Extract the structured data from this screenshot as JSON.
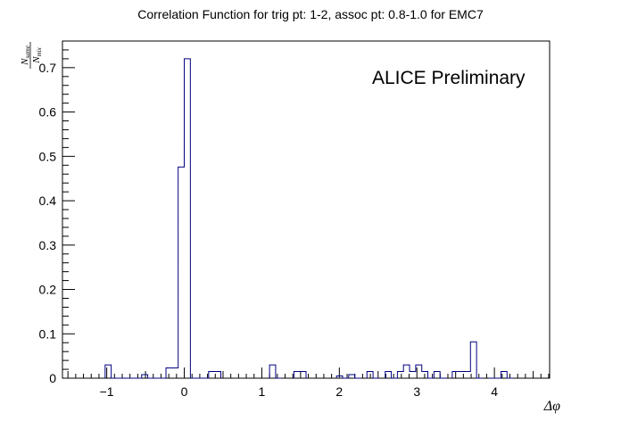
{
  "chart_data": {
    "type": "bar",
    "style": "step-histogram",
    "title": "Correlation Function for trig pt: 1-2, assoc pt: 0.8-1.0 for EMC7",
    "annotation": "ALICE Preliminary",
    "xlabel": "Δφ",
    "ylabel": {
      "numerator": "N",
      "numerator_sub": "same",
      "denominator": "N",
      "denominator_sub": "mix"
    },
    "xlim": [
      -1.571,
      4.712
    ],
    "ylim": [
      0,
      0.76
    ],
    "x_ticks": [
      -1,
      0,
      1,
      2,
      3,
      4
    ],
    "x_tick_labels": [
      "−1",
      "0",
      "1",
      "2",
      "3",
      "4"
    ],
    "y_ticks": [
      0,
      0.1,
      0.2,
      0.3,
      0.4,
      0.5,
      0.6,
      0.7
    ],
    "y_tick_labels": [
      "0",
      "0.1",
      "0.2",
      "0.3",
      "0.4",
      "0.5",
      "0.6",
      "0.7"
    ],
    "grid": false,
    "line_color": "#000080",
    "bin_width": 0.0785,
    "bins": [
      {
        "x": -1.021,
        "y": 0.03
      },
      {
        "x": -0.942,
        "y": 0.0
      },
      {
        "x": -0.864,
        "y": 0.0
      },
      {
        "x": -0.785,
        "y": 0.0
      },
      {
        "x": -0.707,
        "y": 0.0
      },
      {
        "x": -0.628,
        "y": 0.0
      },
      {
        "x": -0.55,
        "y": 0.008
      },
      {
        "x": -0.471,
        "y": 0.0
      },
      {
        "x": -0.393,
        "y": 0.0
      },
      {
        "x": -0.314,
        "y": 0.0
      },
      {
        "x": -0.236,
        "y": 0.023
      },
      {
        "x": -0.157,
        "y": 0.023
      },
      {
        "x": -0.079,
        "y": 0.476
      },
      {
        "x": 0.0,
        "y": 0.72
      },
      {
        "x": 0.079,
        "y": 0.0
      },
      {
        "x": 0.157,
        "y": 0.0
      },
      {
        "x": 0.236,
        "y": 0.0
      },
      {
        "x": 0.314,
        "y": 0.015
      },
      {
        "x": 0.393,
        "y": 0.015
      },
      {
        "x": 1.1,
        "y": 0.03
      },
      {
        "x": 1.178,
        "y": 0.0
      },
      {
        "x": 1.414,
        "y": 0.015
      },
      {
        "x": 1.492,
        "y": 0.015
      },
      {
        "x": 1.964,
        "y": 0.005
      },
      {
        "x": 2.042,
        "y": 0.0
      },
      {
        "x": 2.121,
        "y": 0.008
      },
      {
        "x": 2.199,
        "y": 0.0
      },
      {
        "x": 2.356,
        "y": 0.015
      },
      {
        "x": 2.435,
        "y": 0.0
      },
      {
        "x": 2.592,
        "y": 0.015
      },
      {
        "x": 2.67,
        "y": 0.0
      },
      {
        "x": 2.749,
        "y": 0.015
      },
      {
        "x": 2.827,
        "y": 0.03
      },
      {
        "x": 2.906,
        "y": 0.015
      },
      {
        "x": 2.985,
        "y": 0.03
      },
      {
        "x": 3.063,
        "y": 0.015
      },
      {
        "x": 3.142,
        "y": 0.0
      },
      {
        "x": 3.22,
        "y": 0.015
      },
      {
        "x": 3.299,
        "y": 0.0
      },
      {
        "x": 3.456,
        "y": 0.015
      },
      {
        "x": 3.534,
        "y": 0.015
      },
      {
        "x": 3.613,
        "y": 0.015
      },
      {
        "x": 3.691,
        "y": 0.082
      },
      {
        "x": 3.77,
        "y": 0.0
      },
      {
        "x": 3.927,
        "y": 0.0
      },
      {
        "x": 4.005,
        "y": 0.0
      },
      {
        "x": 4.084,
        "y": 0.015
      },
      {
        "x": 4.163,
        "y": 0.0
      }
    ]
  }
}
